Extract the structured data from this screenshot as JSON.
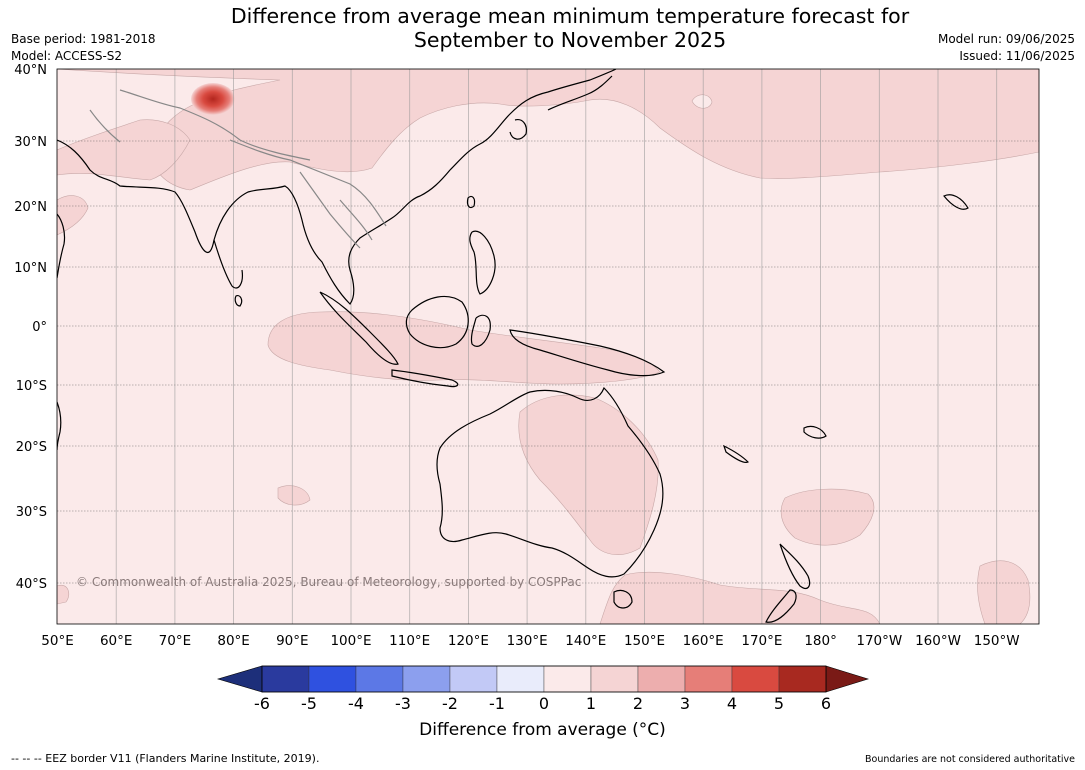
{
  "title_line1": "Difference from average mean minimum temperature forecast for",
  "title_line2": "September to November 2025",
  "base_period": "Base period: 1981-2018",
  "model": "Model: ACCESS-S2",
  "model_run": "Model run: 09/06/2025",
  "issued": "Issued: 11/06/2025",
  "copyright": "© Commonwealth of Australia 2025, Bureau of Meteorology, supported by COSPPac",
  "lat_labels": [
    "40°N",
    "30°N",
    "20°N",
    "10°N",
    "0°",
    "10°S",
    "20°S",
    "30°S",
    "40°S"
  ],
  "lon_labels": [
    "50°E",
    "60°E",
    "70°E",
    "80°E",
    "90°E",
    "100°E",
    "110°E",
    "120°E",
    "130°E",
    "140°E",
    "150°E",
    "160°E",
    "170°E",
    "180°",
    "170°W",
    "160°W",
    "150°W"
  ],
  "colorbar": {
    "ticks": [
      "-6",
      "-5",
      "-4",
      "-3",
      "-2",
      "-1",
      "0",
      "1",
      "2",
      "3",
      "4",
      "5",
      "6"
    ],
    "colors": [
      "#2a3a9e",
      "#2f51e0",
      "#5c78e6",
      "#8c9fee",
      "#c2c9f6",
      "#e9ecfb",
      "#fbeaea",
      "#f5d4d4",
      "#edaeae",
      "#e67e78",
      "#d94a40",
      "#a82920"
    ],
    "under_color": "#1d2f7a",
    "over_color": "#7a1a16",
    "title": "Difference from average (°C)"
  },
  "eez_note": "--  --  -- EEZ border V11 (Flanders Marine Institute, 2019).",
  "boundaries_note": "Boundaries are not considered authoritative"
}
